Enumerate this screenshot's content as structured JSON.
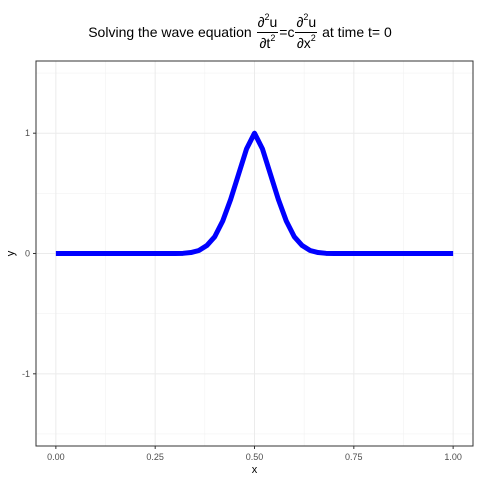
{
  "title": {
    "prefix": "Solving the wave equation ",
    "frac1_num": "∂",
    "frac1_num_sup": "2",
    "frac1_num_var": "u",
    "frac1_den": "∂t",
    "frac1_den_sup": "2",
    "equals": "=c",
    "frac2_num": "∂",
    "frac2_num_sup": "2",
    "frac2_num_var": "u",
    "frac2_den": "∂x",
    "frac2_den_sup": "2",
    "suffix": " at time t= 0"
  },
  "chart_data": {
    "type": "line",
    "title": "Solving the wave equation ∂²u/∂t² = c ∂²u/∂x² at time t= 0",
    "xlabel": "x",
    "ylabel": "y",
    "xlim": [
      -0.05,
      1.05
    ],
    "ylim": [
      -1.6,
      1.6
    ],
    "x_ticks": [
      0.0,
      0.25,
      0.5,
      0.75,
      1.0
    ],
    "x_tick_labels": [
      "0.00",
      "0.25",
      "0.50",
      "0.75",
      "1.00"
    ],
    "y_ticks": [
      -1,
      0,
      1
    ],
    "y_tick_labels": [
      "-1",
      "0",
      "1"
    ],
    "grid": true,
    "legend": "none",
    "line_color": "#0000ff",
    "x": [
      0.0,
      0.05,
      0.1,
      0.15,
      0.2,
      0.25,
      0.3,
      0.32,
      0.34,
      0.36,
      0.38,
      0.4,
      0.42,
      0.44,
      0.46,
      0.48,
      0.5,
      0.52,
      0.54,
      0.56,
      0.58,
      0.6,
      0.62,
      0.64,
      0.66,
      0.68,
      0.7,
      0.75,
      0.8,
      0.85,
      0.9,
      0.95,
      1.0
    ],
    "y": [
      0,
      0,
      0,
      0,
      0,
      0,
      0,
      0.0015,
      0.008,
      0.025,
      0.066,
      0.14,
      0.27,
      0.45,
      0.66,
      0.87,
      1.0,
      0.87,
      0.66,
      0.45,
      0.27,
      0.14,
      0.066,
      0.025,
      0.008,
      0.0015,
      0,
      0,
      0,
      0,
      0,
      0,
      0
    ]
  }
}
